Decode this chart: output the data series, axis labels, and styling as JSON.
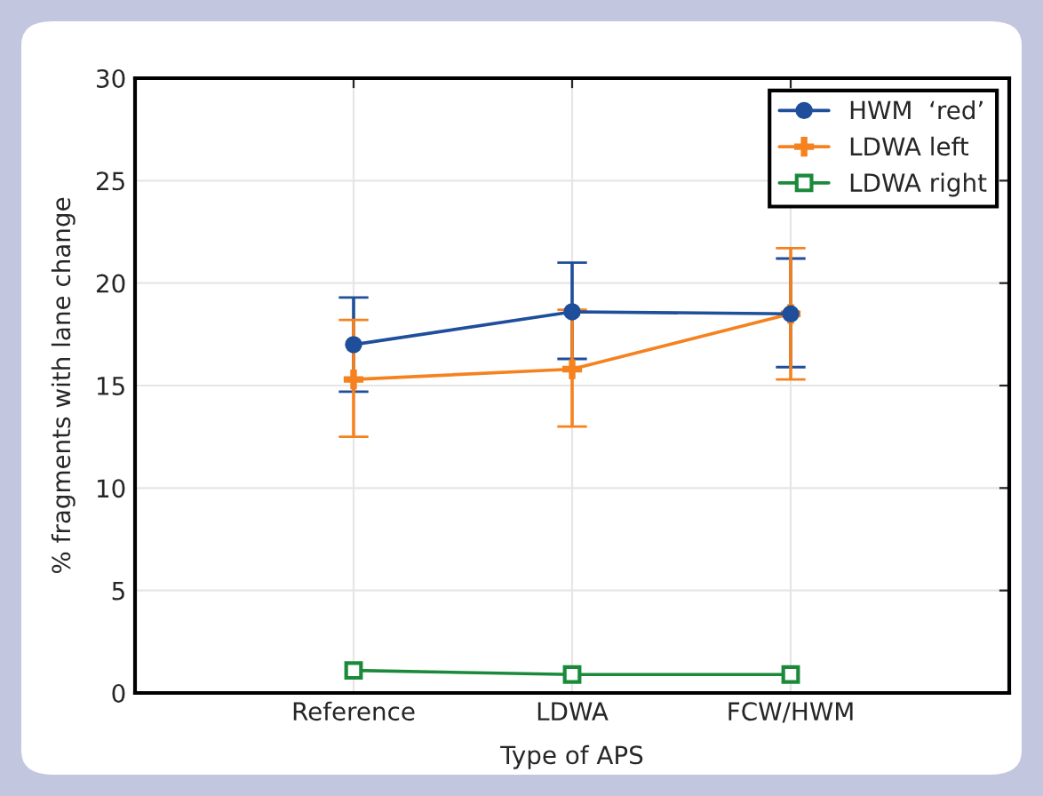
{
  "chart_data": {
    "type": "line",
    "xlabel": "Type of APS",
    "ylabel": "% fragments with lane change",
    "categories": [
      "Reference",
      "LDWA",
      "FCW/HWM"
    ],
    "ylim": [
      0,
      30
    ],
    "yticks": [
      0,
      5,
      10,
      15,
      20,
      25,
      30
    ],
    "grid": true,
    "legend": "top right",
    "series": [
      {
        "name": "HWM  ‘red’",
        "color": "#1f4e9a",
        "marker": "circle",
        "values": [
          17.0,
          18.6,
          18.5
        ],
        "errors": [
          [
            14.7,
            19.3
          ],
          [
            16.3,
            21.0
          ],
          [
            15.9,
            21.2
          ]
        ]
      },
      {
        "name": "LDWA left",
        "color": "#f5821f",
        "marker": "cross",
        "values": [
          15.3,
          15.8,
          18.5
        ],
        "errors": [
          [
            12.5,
            18.2
          ],
          [
            13.0,
            18.7
          ],
          [
            15.3,
            21.7
          ]
        ]
      },
      {
        "name": "LDWA right",
        "color": "#1a8a3a",
        "marker": "square",
        "values": [
          1.1,
          0.9,
          0.9
        ]
      }
    ]
  }
}
